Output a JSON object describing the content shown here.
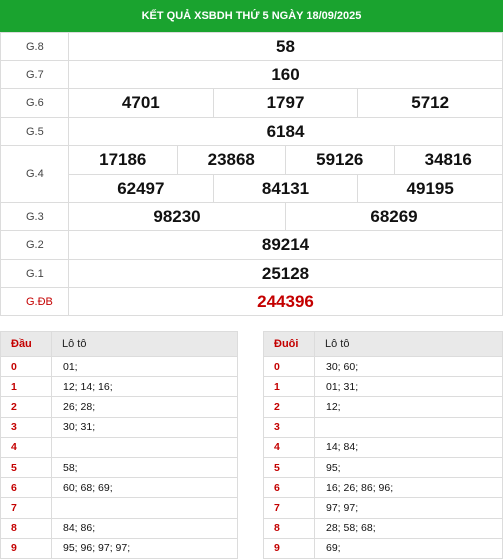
{
  "header": {
    "title": "KẾT QUẢ XSBDH THỨ 5 NGÀY 18/09/2025"
  },
  "results": {
    "g8": {
      "label": "G.8",
      "values": [
        "58"
      ]
    },
    "g7": {
      "label": "G.7",
      "values": [
        "160"
      ]
    },
    "g6": {
      "label": "G.6",
      "values": [
        "4701",
        "1797",
        "5712"
      ]
    },
    "g5": {
      "label": "G.5",
      "values": [
        "6184"
      ]
    },
    "g4": {
      "label": "G.4",
      "row1": [
        "17186",
        "23868",
        "59126",
        "34816"
      ],
      "row2": [
        "62497",
        "84131",
        "49195"
      ]
    },
    "g3": {
      "label": "G.3",
      "values": [
        "98230",
        "68269"
      ]
    },
    "g2": {
      "label": "G.2",
      "values": [
        "89214"
      ]
    },
    "g1": {
      "label": "G.1",
      "values": [
        "25128"
      ]
    },
    "gdb": {
      "label": "G.ĐB",
      "values": [
        "244396"
      ]
    }
  },
  "dau_table": {
    "head_key": "Đầu",
    "head_value": "Lô tô",
    "rows": [
      {
        "k": "0",
        "v": "01;"
      },
      {
        "k": "1",
        "v": "12; 14; 16;"
      },
      {
        "k": "2",
        "v": "26; 28;"
      },
      {
        "k": "3",
        "v": "30; 31;"
      },
      {
        "k": "4",
        "v": ""
      },
      {
        "k": "5",
        "v": "58;"
      },
      {
        "k": "6",
        "v": "60; 68; 69;"
      },
      {
        "k": "7",
        "v": ""
      },
      {
        "k": "8",
        "v": "84; 86;"
      },
      {
        "k": "9",
        "v": "95; 96; 97; 97;"
      }
    ]
  },
  "duoi_table": {
    "head_key": "Đuôi",
    "head_value": "Lô tô",
    "rows": [
      {
        "k": "0",
        "v": "30; 60;"
      },
      {
        "k": "1",
        "v": "01; 31;"
      },
      {
        "k": "2",
        "v": "12;"
      },
      {
        "k": "3",
        "v": ""
      },
      {
        "k": "4",
        "v": "14; 84;"
      },
      {
        "k": "5",
        "v": "95;"
      },
      {
        "k": "6",
        "v": "16; 26; 86; 96;"
      },
      {
        "k": "7",
        "v": "97; 97;"
      },
      {
        "k": "8",
        "v": "28; 58; 68;"
      },
      {
        "k": "9",
        "v": "69;"
      }
    ]
  },
  "colors": {
    "header_bg": "#1aa32f",
    "special": "#c40000",
    "head_bg": "#e9e9e9"
  }
}
